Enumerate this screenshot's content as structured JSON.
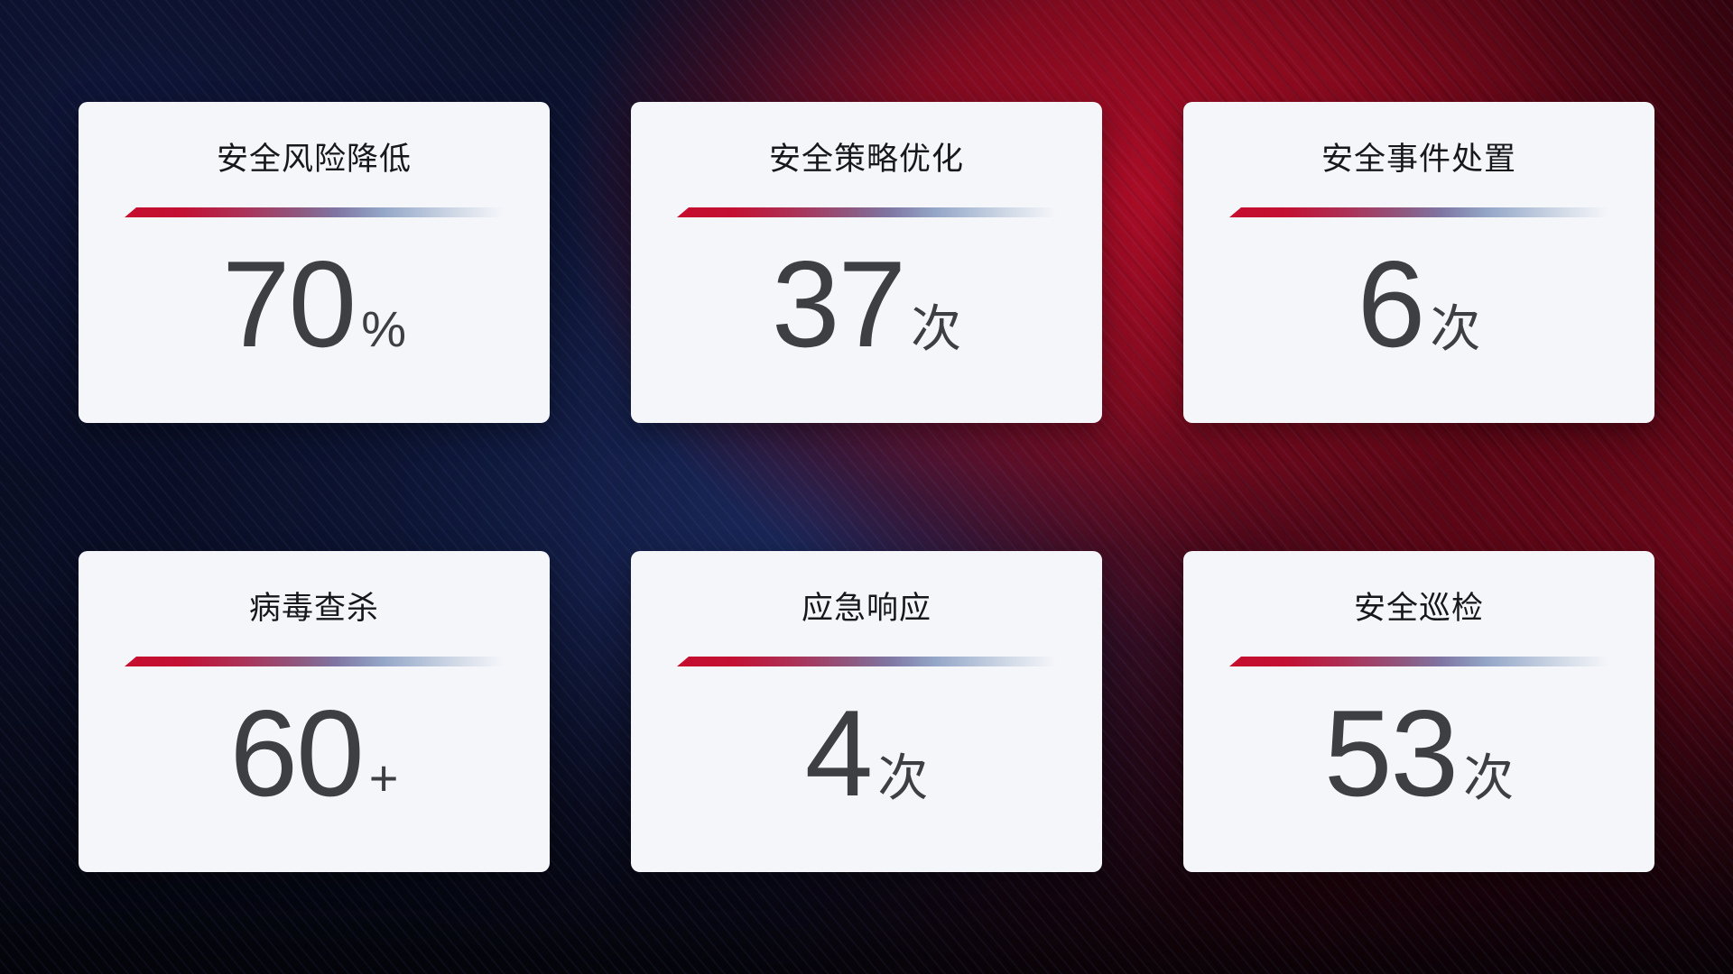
{
  "page": {
    "type": "security-operations-stat-dashboard",
    "background": {
      "base": "#06070F",
      "navy_top_left": "#0C1130",
      "blue_center_glow": "#1C326E",
      "red_main_glow": "#A50D26",
      "dark_red_right": "#4A030C"
    }
  },
  "styles": {
    "card_bg": "#F5F6FA",
    "title_color": "#17181B",
    "value_color": "#3E3F43",
    "divider_gradient_start": "#C60E2E",
    "divider_gradient_mid": "#7F76A3",
    "divider_gradient_end": "#D9E0EB"
  },
  "cards": [
    {
      "title": "安全风险降低",
      "value": "70",
      "unit": "%"
    },
    {
      "title": "安全策略优化",
      "value": "37",
      "unit": "次"
    },
    {
      "title": "安全事件处置",
      "value": "6",
      "unit": "次"
    },
    {
      "title": "病毒查杀",
      "value": "60",
      "unit": "+"
    },
    {
      "title": "应急响应",
      "value": "4",
      "unit": "次"
    },
    {
      "title": "安全巡检",
      "value": "53",
      "unit": "次"
    }
  ]
}
